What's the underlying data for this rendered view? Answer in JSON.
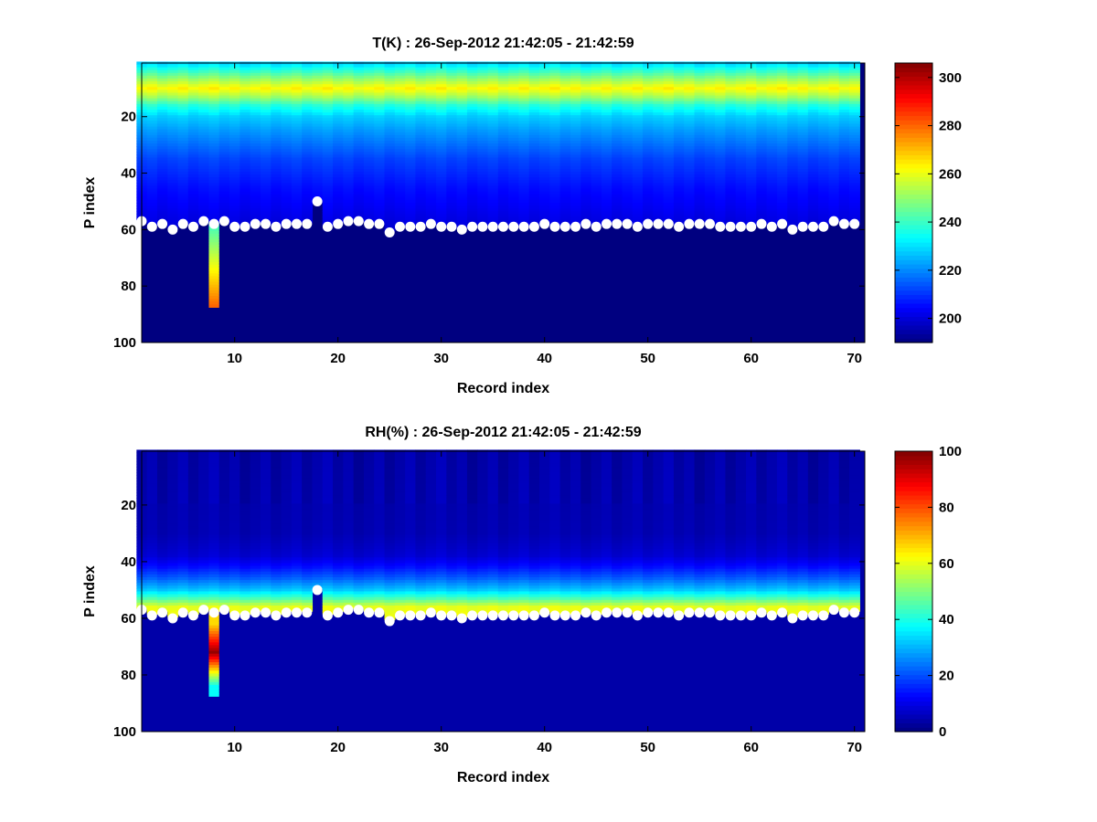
{
  "chart_data": [
    {
      "type": "heatmap",
      "title": "T(K) : 26-Sep-2012 21:42:05 - 21:42:59",
      "xlabel": "Record index",
      "ylabel": "P index",
      "xlim": [
        1,
        71
      ],
      "ylim": [
        100,
        1
      ],
      "y_reversed": true,
      "xticks": [
        10,
        20,
        30,
        40,
        50,
        60,
        70
      ],
      "yticks": [
        20,
        40,
        60,
        80,
        100
      ],
      "colormap": "jet",
      "colorbar": {
        "range": [
          190,
          306
        ],
        "ticks": [
          200,
          220,
          240,
          260,
          280,
          300
        ]
      },
      "background_value": 190,
      "n_records": 70,
      "n_levels": 100,
      "profile_values": [
        {
          "p": 1,
          "v": 228
        },
        {
          "p": 4,
          "v": 240
        },
        {
          "p": 7,
          "v": 252
        },
        {
          "p": 10,
          "v": 263
        },
        {
          "p": 13,
          "v": 252
        },
        {
          "p": 16,
          "v": 238
        },
        {
          "p": 20,
          "v": 228
        },
        {
          "p": 25,
          "v": 222
        },
        {
          "p": 30,
          "v": 217
        },
        {
          "p": 35,
          "v": 212
        },
        {
          "p": 40,
          "v": 209
        },
        {
          "p": 45,
          "v": 206
        },
        {
          "p": 50,
          "v": 204
        },
        {
          "p": 55,
          "v": 202
        },
        {
          "p": 60,
          "v": 200
        }
      ],
      "surface_level": [
        57,
        59,
        58,
        60,
        58,
        59,
        57,
        58,
        57,
        59,
        59,
        58,
        58,
        59,
        58,
        58,
        58,
        50,
        59,
        58,
        57,
        57,
        58,
        58,
        61,
        59,
        59,
        59,
        58,
        59,
        59,
        60,
        59,
        59,
        59,
        59,
        59,
        59,
        59,
        58,
        59,
        59,
        59,
        58,
        59,
        58,
        58,
        58,
        59,
        58,
        58,
        58,
        59,
        58,
        58,
        58,
        59,
        59,
        59,
        59,
        58,
        59,
        58,
        60,
        59,
        59,
        59,
        57,
        58,
        58
      ],
      "special_column": {
        "record": 8,
        "from": 58,
        "to": 87,
        "top_value": 240,
        "bottom_value": 280
      }
    },
    {
      "type": "heatmap",
      "title": "RH(%) : 26-Sep-2012 21:42:05 - 21:42:59",
      "xlabel": "Record index",
      "ylabel": "P index",
      "xlim": [
        1,
        71
      ],
      "ylim": [
        100,
        1
      ],
      "y_reversed": true,
      "xticks": [
        10,
        20,
        30,
        40,
        50,
        60,
        70
      ],
      "yticks": [
        20,
        40,
        60,
        80,
        100
      ],
      "colormap": "jet",
      "colorbar": {
        "range": [
          0,
          100
        ],
        "ticks": [
          0,
          20,
          40,
          60,
          80,
          100
        ]
      },
      "background_value": 4,
      "n_records": 70,
      "n_levels": 100,
      "profile_values": [
        {
          "p": 1,
          "v": 4
        },
        {
          "p": 30,
          "v": 5
        },
        {
          "p": 38,
          "v": 8
        },
        {
          "p": 42,
          "v": 14
        },
        {
          "p": 46,
          "v": 22
        },
        {
          "p": 50,
          "v": 32
        },
        {
          "p": 53,
          "v": 45
        },
        {
          "p": 56,
          "v": 60
        },
        {
          "p": 60,
          "v": 62
        }
      ],
      "surface_level": [
        57,
        59,
        58,
        60,
        58,
        59,
        57,
        58,
        57,
        59,
        59,
        58,
        58,
        59,
        58,
        58,
        58,
        50,
        59,
        58,
        57,
        57,
        58,
        58,
        61,
        59,
        59,
        59,
        58,
        59,
        59,
        60,
        59,
        59,
        59,
        59,
        59,
        59,
        59,
        58,
        59,
        59,
        59,
        58,
        59,
        58,
        58,
        58,
        59,
        58,
        58,
        58,
        59,
        58,
        58,
        58,
        59,
        59,
        59,
        59,
        58,
        59,
        58,
        60,
        59,
        59,
        59,
        57,
        58,
        58
      ],
      "special_column": {
        "record": 8,
        "from": 58,
        "to": 87,
        "top_value": 66,
        "bottom_value": 38,
        "peak_value": 98,
        "peak_at": 72
      }
    }
  ]
}
